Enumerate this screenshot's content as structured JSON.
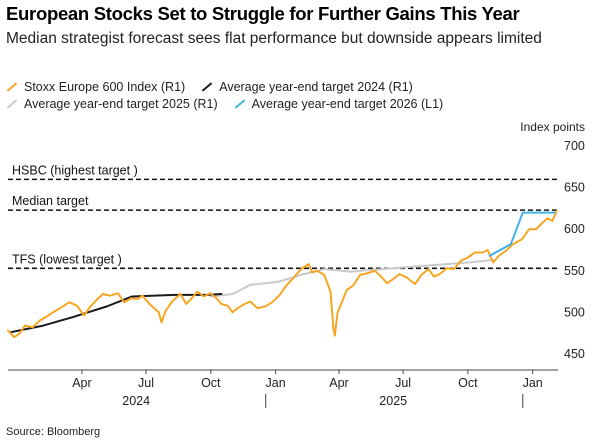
{
  "chart_data": {
    "type": "line",
    "title": "European Stocks Set to Struggle for Further Gains This Year",
    "subtitle": "Median strategist forecast sees flat performance but downside appears limited",
    "source": "Source: Bloomberg",
    "ylabel": "Index points",
    "y_ticks": [
      "700",
      "650",
      "600",
      "550",
      "500",
      "450"
    ],
    "y_tick_values": [
      700,
      650,
      600,
      550,
      500,
      450
    ],
    "ylim": [
      445,
      705
    ],
    "xlim": [
      "2024-01-01",
      "2026-02-20"
    ],
    "x_tick_labels": [
      "Apr",
      "Jul",
      "Oct",
      "Jan",
      "Apr",
      "Jul",
      "Oct",
      "Jan"
    ],
    "x_tick_dates": [
      "2024-04-15",
      "2024-07-15",
      "2024-10-15",
      "2025-01-15",
      "2025-04-15",
      "2025-07-15",
      "2025-10-15",
      "2026-01-15"
    ],
    "year_labels": [
      "2024",
      "2025"
    ],
    "year_label_dates": [
      "2024-07-01",
      "2025-07-01"
    ],
    "year_separator_dates": [
      "2025-01-01",
      "2026-01-01"
    ],
    "grid": false,
    "legend_position": "top",
    "reference_lines": [
      {
        "label": "HSBC (highest target )",
        "value": 660
      },
      {
        "label": "Median target",
        "value": 623
      },
      {
        "label": "TFS (lowest target )",
        "value": 553
      }
    ],
    "series": [
      {
        "name": "Stoxx Europe 600 Index (R1)",
        "color": "#f5a623",
        "points": [
          [
            "2024-01-01",
            478
          ],
          [
            "2024-01-10",
            470
          ],
          [
            "2024-01-18",
            475
          ],
          [
            "2024-01-25",
            484
          ],
          [
            "2024-02-05",
            482
          ],
          [
            "2024-02-15",
            490
          ],
          [
            "2024-02-25",
            495
          ],
          [
            "2024-03-05",
            500
          ],
          [
            "2024-03-15",
            505
          ],
          [
            "2024-03-28",
            512
          ],
          [
            "2024-04-08",
            508
          ],
          [
            "2024-04-18",
            496
          ],
          [
            "2024-04-25",
            505
          ],
          [
            "2024-05-06",
            515
          ],
          [
            "2024-05-15",
            522
          ],
          [
            "2024-05-25",
            520
          ],
          [
            "2024-06-05",
            523
          ],
          [
            "2024-06-14",
            512
          ],
          [
            "2024-06-24",
            517
          ],
          [
            "2024-07-03",
            516
          ],
          [
            "2024-07-10",
            520
          ],
          [
            "2024-07-20",
            510
          ],
          [
            "2024-08-02",
            500
          ],
          [
            "2024-08-06",
            488
          ],
          [
            "2024-08-12",
            502
          ],
          [
            "2024-08-22",
            514
          ],
          [
            "2024-09-02",
            522
          ],
          [
            "2024-09-10",
            510
          ],
          [
            "2024-09-18",
            517
          ],
          [
            "2024-09-26",
            525
          ],
          [
            "2024-10-05",
            519
          ],
          [
            "2024-10-14",
            523
          ],
          [
            "2024-10-22",
            518
          ],
          [
            "2024-10-30",
            510
          ],
          [
            "2024-11-08",
            508
          ],
          [
            "2024-11-15",
            500
          ],
          [
            "2024-11-22",
            505
          ],
          [
            "2024-12-02",
            510
          ],
          [
            "2024-12-10",
            513
          ],
          [
            "2024-12-20",
            505
          ],
          [
            "2024-12-31",
            507
          ],
          [
            "2025-01-10",
            512
          ],
          [
            "2025-01-20",
            520
          ],
          [
            "2025-01-30",
            532
          ],
          [
            "2025-02-10",
            542
          ],
          [
            "2025-02-20",
            552
          ],
          [
            "2025-03-03",
            558
          ],
          [
            "2025-03-08",
            548
          ],
          [
            "2025-03-15",
            550
          ],
          [
            "2025-03-25",
            545
          ],
          [
            "2025-04-03",
            525
          ],
          [
            "2025-04-07",
            480
          ],
          [
            "2025-04-09",
            472
          ],
          [
            "2025-04-13",
            500
          ],
          [
            "2025-04-18",
            510
          ],
          [
            "2025-04-26",
            527
          ],
          [
            "2025-05-05",
            532
          ],
          [
            "2025-05-15",
            545
          ],
          [
            "2025-05-25",
            547
          ],
          [
            "2025-06-05",
            550
          ],
          [
            "2025-06-15",
            542
          ],
          [
            "2025-06-22",
            535
          ],
          [
            "2025-07-01",
            540
          ],
          [
            "2025-07-10",
            546
          ],
          [
            "2025-07-20",
            542
          ],
          [
            "2025-08-01",
            534
          ],
          [
            "2025-08-10",
            545
          ],
          [
            "2025-08-20",
            552
          ],
          [
            "2025-08-28",
            543
          ],
          [
            "2025-09-05",
            546
          ],
          [
            "2025-09-15",
            553
          ],
          [
            "2025-09-25",
            552
          ],
          [
            "2025-10-05",
            562
          ],
          [
            "2025-10-15",
            566
          ],
          [
            "2025-10-25",
            572
          ],
          [
            "2025-11-05",
            572
          ],
          [
            "2025-11-12",
            575
          ],
          [
            "2025-11-20",
            560
          ],
          [
            "2025-11-28",
            568
          ],
          [
            "2025-12-08",
            574
          ],
          [
            "2025-12-18",
            582
          ],
          [
            "2025-12-31",
            588
          ],
          [
            "2026-01-10",
            600
          ],
          [
            "2026-01-20",
            600
          ],
          [
            "2026-01-28",
            607
          ],
          [
            "2026-02-05",
            613
          ],
          [
            "2026-02-12",
            610
          ],
          [
            "2026-02-18",
            622
          ]
        ]
      },
      {
        "name": "Average year-end target 2024 (R1)",
        "color": "#1a1a1a",
        "points": [
          [
            "2024-01-05",
            476
          ],
          [
            "2024-02-20",
            484
          ],
          [
            "2024-04-01",
            494
          ],
          [
            "2024-05-20",
            507
          ],
          [
            "2024-06-25",
            519
          ],
          [
            "2024-08-25",
            521
          ],
          [
            "2024-10-10",
            521
          ],
          [
            "2024-10-30",
            522
          ]
        ]
      },
      {
        "name": "Average year-end target 2025 (R1)",
        "color": "#c9c9c9",
        "points": [
          [
            "2024-10-15",
            519
          ],
          [
            "2024-11-15",
            522
          ],
          [
            "2024-12-10",
            533
          ],
          [
            "2025-01-20",
            537
          ],
          [
            "2025-02-20",
            545
          ],
          [
            "2025-03-25",
            552
          ],
          [
            "2025-05-01",
            549
          ],
          [
            "2025-06-15",
            552
          ],
          [
            "2025-08-15",
            556
          ],
          [
            "2025-10-15",
            560
          ],
          [
            "2025-11-20",
            563
          ]
        ]
      },
      {
        "name": "Average year-end target 2026 (L1)",
        "color": "#3fb1e8",
        "points": [
          [
            "2025-11-15",
            568
          ],
          [
            "2025-12-15",
            582
          ],
          [
            "2026-01-01",
            620
          ],
          [
            "2026-02-15",
            620
          ]
        ]
      }
    ]
  },
  "legend_rows": [
    [
      0,
      1
    ],
    [
      2,
      3
    ]
  ]
}
